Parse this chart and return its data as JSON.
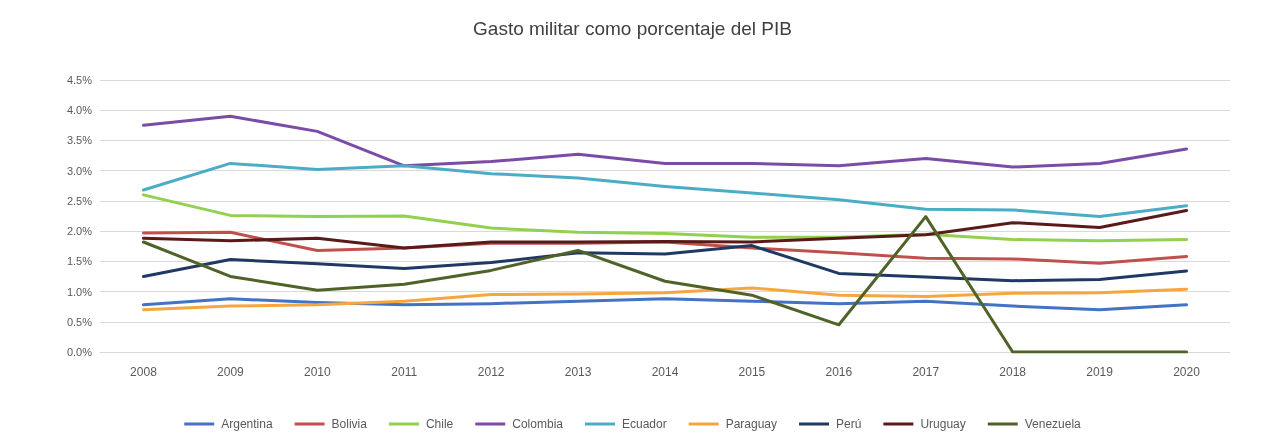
{
  "chart_data": {
    "type": "line",
    "title": "Gasto militar como porcentaje del PIB",
    "categories": [
      "2008",
      "2009",
      "2010",
      "2011",
      "2012",
      "2013",
      "2014",
      "2015",
      "2016",
      "2017",
      "2018",
      "2019",
      "2020"
    ],
    "series": [
      {
        "name": "Argentina",
        "color": "#4472c4",
        "values": [
          0.78,
          0.88,
          0.82,
          0.78,
          0.8,
          0.84,
          0.88,
          0.84,
          0.8,
          0.84,
          0.76,
          0.7,
          0.78
        ]
      },
      {
        "name": "Bolivia",
        "color": "#c0504d",
        "values": [
          1.97,
          1.98,
          1.68,
          1.72,
          1.8,
          1.8,
          1.82,
          1.72,
          1.64,
          1.55,
          1.54,
          1.47,
          1.58
        ]
      },
      {
        "name": "Chile",
        "color": "#92d050",
        "values": [
          2.6,
          2.26,
          2.24,
          2.25,
          2.05,
          1.98,
          1.96,
          1.9,
          1.9,
          1.95,
          1.86,
          1.84,
          1.86
        ]
      },
      {
        "name": "Colombia",
        "color": "#7a4ca8",
        "values": [
          3.75,
          3.9,
          3.65,
          3.08,
          3.15,
          3.27,
          3.12,
          3.12,
          3.08,
          3.2,
          3.06,
          3.12,
          3.36
        ]
      },
      {
        "name": "Ecuador",
        "color": "#4bacc6",
        "values": [
          2.68,
          3.12,
          3.02,
          3.08,
          2.95,
          2.88,
          2.74,
          2.63,
          2.52,
          2.36,
          2.35,
          2.24,
          2.42
        ]
      },
      {
        "name": "Paraguay",
        "color": "#f5a640",
        "values": [
          0.7,
          0.76,
          0.78,
          0.84,
          0.95,
          0.96,
          0.98,
          1.06,
          0.94,
          0.92,
          0.97,
          0.98,
          1.04
        ]
      },
      {
        "name": "Perú",
        "color": "#1f3864",
        "values": [
          1.25,
          1.53,
          1.46,
          1.38,
          1.48,
          1.64,
          1.62,
          1.76,
          1.3,
          1.24,
          1.18,
          1.2,
          1.34
        ]
      },
      {
        "name": "Uruguay",
        "color": "#5a1a1a",
        "values": [
          1.88,
          1.84,
          1.88,
          1.72,
          1.82,
          1.82,
          1.83,
          1.82,
          1.88,
          1.94,
          2.14,
          2.06,
          2.34
        ]
      },
      {
        "name": "Venezuela",
        "color": "#4f6228",
        "values": [
          1.82,
          1.25,
          1.02,
          1.12,
          1.35,
          1.68,
          1.17,
          0.94,
          0.45,
          2.24,
          0,
          0,
          0
        ]
      }
    ],
    "ylim": [
      0,
      4.5
    ],
    "yticks": [
      {
        "value": 0,
        "label": "0.0%"
      },
      {
        "value": 0.5,
        "label": "0.5%"
      },
      {
        "value": 1,
        "label": "1.0%"
      },
      {
        "value": 1.5,
        "label": "1.5%"
      },
      {
        "value": 2,
        "label": "2.0%"
      },
      {
        "value": 2.5,
        "label": "2.5%"
      },
      {
        "value": 3,
        "label": "3.0%"
      },
      {
        "value": 3.5,
        "label": "3.5%"
      },
      {
        "value": 4,
        "label": "4.0%"
      },
      {
        "value": 4.5,
        "label": "4.5%"
      }
    ],
    "grid": "y",
    "legend": "bottom",
    "marker": "none",
    "line_style": "solid"
  }
}
